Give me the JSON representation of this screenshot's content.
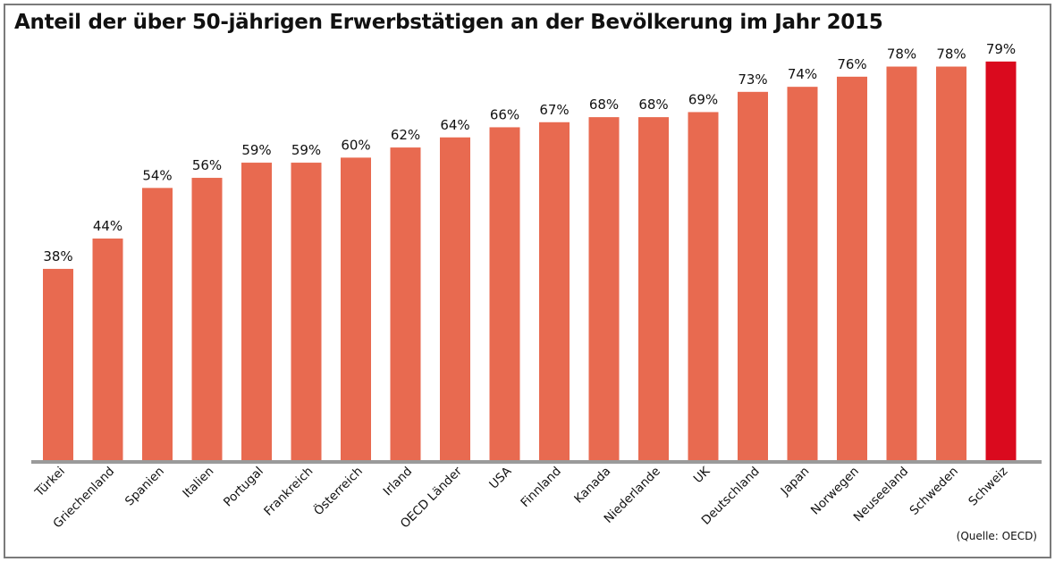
{
  "chart_data": {
    "type": "bar",
    "title": "Anteil der über 50-jährigen Erwerbstätigen an der Bevölkerung im Jahr 2015",
    "source": "(Quelle: OECD)",
    "categories": [
      "Türkei",
      "Griechenland",
      "Spanien",
      "Italien",
      "Portugal",
      "Frankreich",
      "Österreich",
      "Irland",
      "OECD Länder",
      "USA",
      "Finnland",
      "Kanada",
      "Niederlande",
      "UK",
      "Deutschland",
      "Japan",
      "Norwegen",
      "Neuseeland",
      "Schweden",
      "Schweiz"
    ],
    "values": [
      38,
      44,
      54,
      56,
      59,
      59,
      60,
      62,
      64,
      66,
      67,
      68,
      68,
      69,
      73,
      74,
      76,
      78,
      78,
      79
    ],
    "value_labels": [
      "38%",
      "44%",
      "54%",
      "56%",
      "59%",
      "59%",
      "60%",
      "62%",
      "64%",
      "66%",
      "67%",
      "68%",
      "68%",
      "69%",
      "73%",
      "74%",
      "76%",
      "78%",
      "78%",
      "79%"
    ],
    "unit": "%",
    "ylim": [
      0,
      80
    ],
    "grid": false,
    "colors": {
      "bar": "#E86A50",
      "highlight": "#DA0A1E",
      "axis": "#9a9a9a"
    },
    "highlight_category": "Schweiz"
  }
}
